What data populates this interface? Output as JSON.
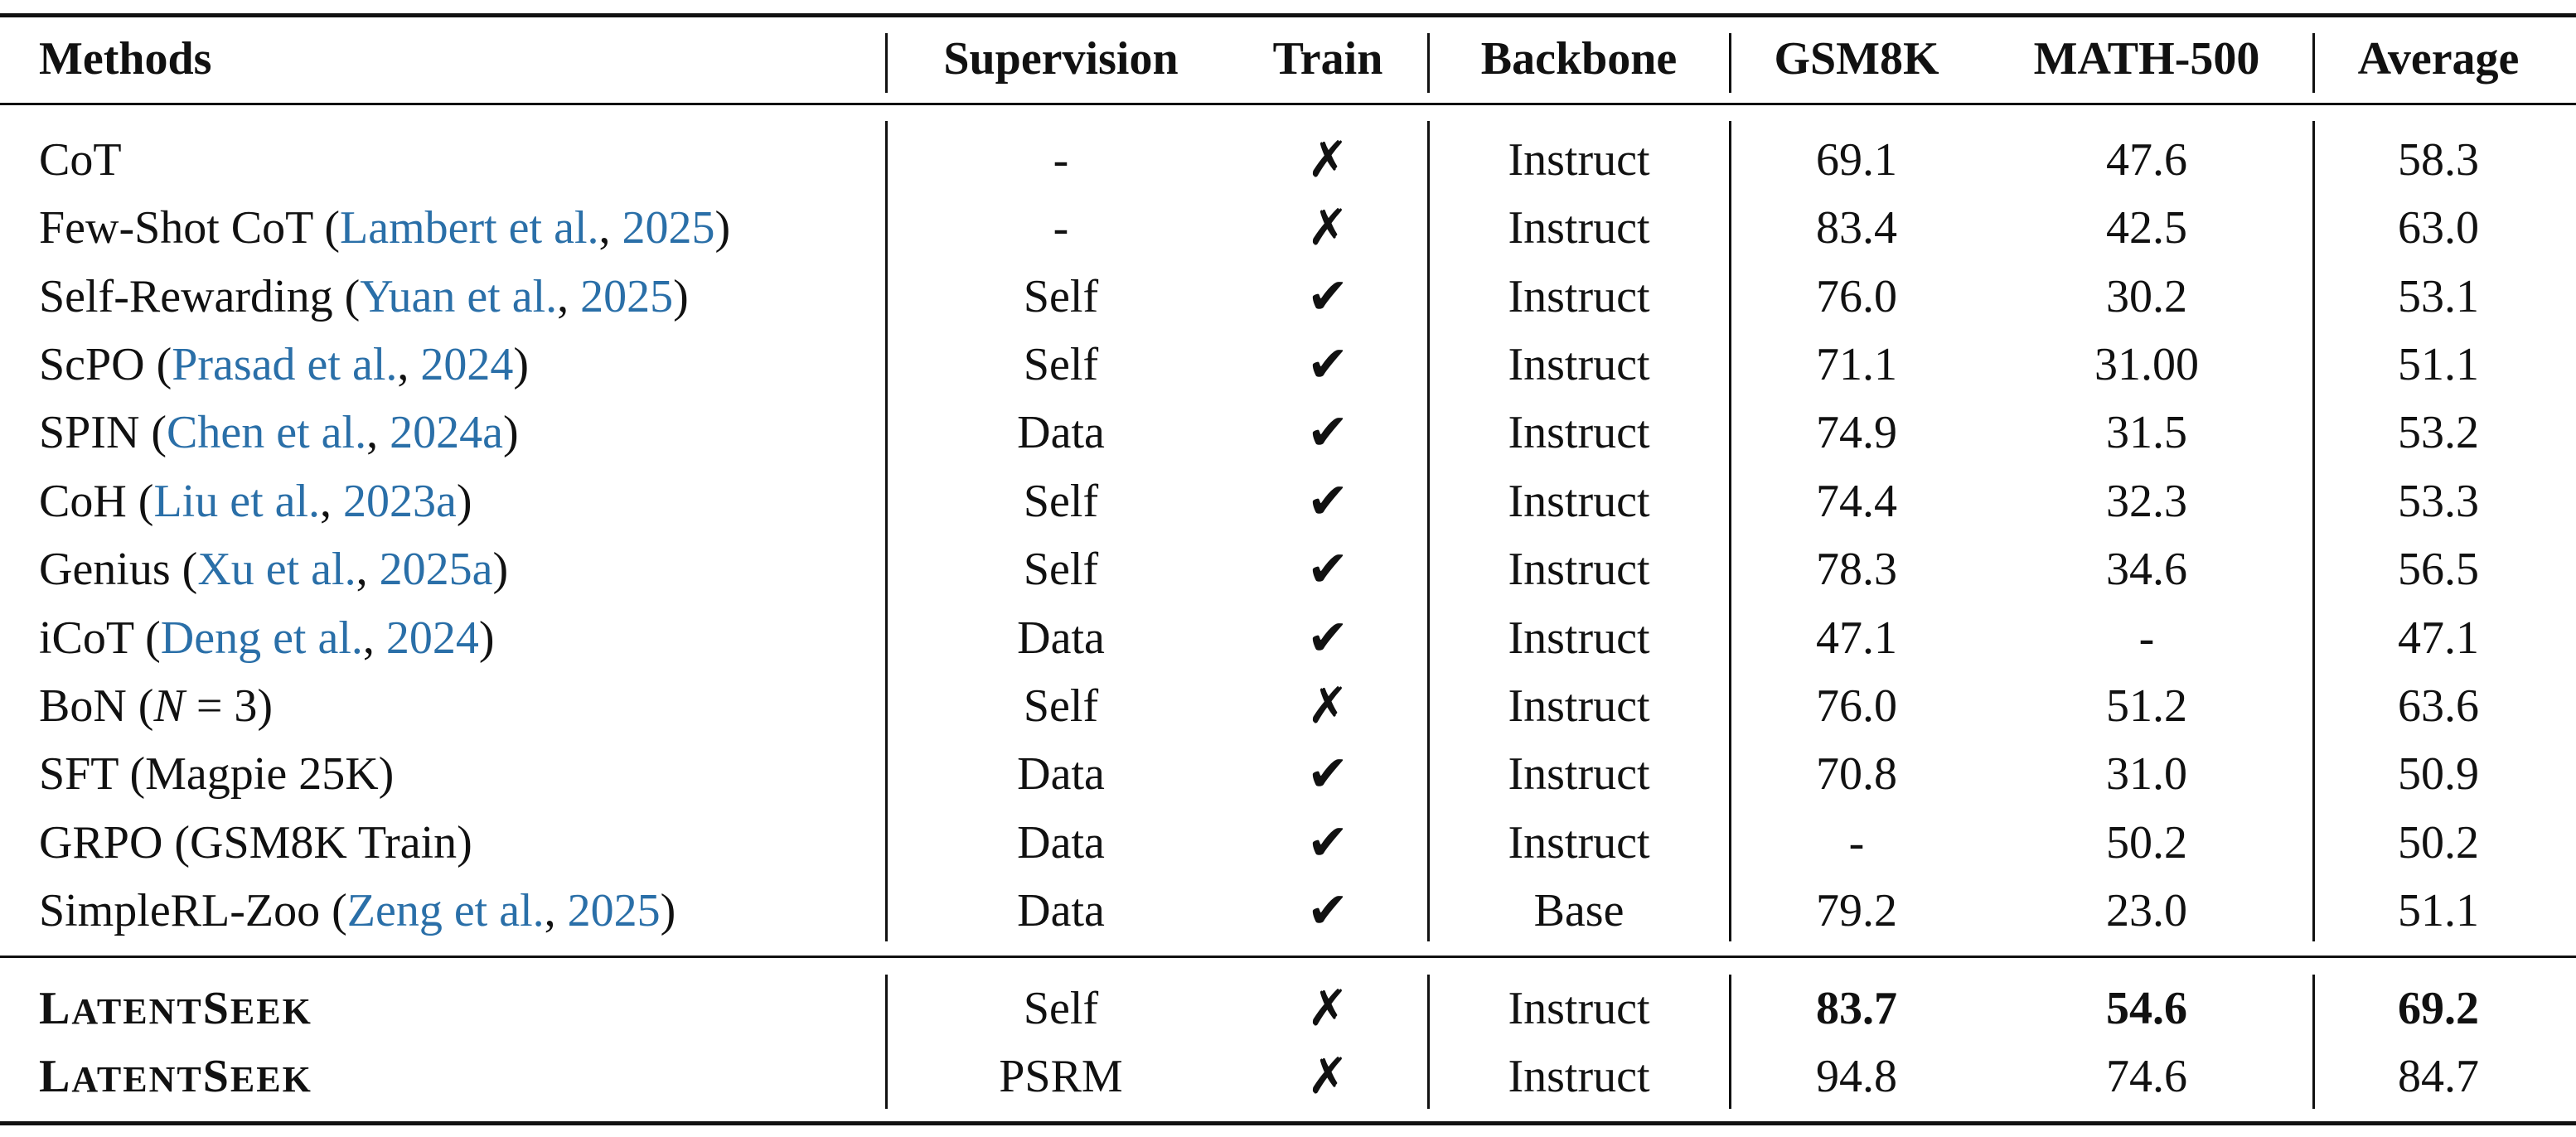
{
  "headers": {
    "methods": "Methods",
    "supervision": "Supervision",
    "train": "Train",
    "backbone": "Backbone",
    "gsm8k": "GSM8K",
    "math500": "MATH-500",
    "average": "Average"
  },
  "symbols": {
    "check": "✔",
    "cross": "✗"
  },
  "rows": [
    {
      "name": "CoT",
      "cite_pre": "",
      "cite": "",
      "cite_mid": "",
      "year": "",
      "cite_post": "",
      "supervision": "-",
      "train": "✗",
      "backbone": "Instruct",
      "gsm8k": "69.1",
      "math500": "47.6",
      "average": "58.3"
    },
    {
      "name": "Few-Shot CoT",
      "cite_pre": " (",
      "cite": "Lambert et al.",
      "cite_mid": ", ",
      "year": "2025",
      "cite_post": ")",
      "supervision": "-",
      "train": "✗",
      "backbone": "Instruct",
      "gsm8k": "83.4",
      "math500": "42.5",
      "average": "63.0"
    },
    {
      "name": "Self-Rewarding",
      "cite_pre": " (",
      "cite": "Yuan et al.",
      "cite_mid": ", ",
      "year": "2025",
      "cite_post": ")",
      "supervision": "Self",
      "train": "✔",
      "backbone": "Instruct",
      "gsm8k": "76.0",
      "math500": "30.2",
      "average": "53.1"
    },
    {
      "name": "ScPO",
      "cite_pre": " (",
      "cite": "Prasad et al.",
      "cite_mid": ", ",
      "year": "2024",
      "cite_post": ")",
      "supervision": "Self",
      "train": "✔",
      "backbone": "Instruct",
      "gsm8k": "71.1",
      "math500": "31.00",
      "average": "51.1"
    },
    {
      "name": "SPIN",
      "cite_pre": " (",
      "cite": "Chen et al.",
      "cite_mid": ", ",
      "year": "2024a",
      "cite_post": ")",
      "supervision": "Data",
      "train": "✔",
      "backbone": "Instruct",
      "gsm8k": "74.9",
      "math500": "31.5",
      "average": "53.2"
    },
    {
      "name": "CoH",
      "cite_pre": " (",
      "cite": "Liu et al.",
      "cite_mid": ", ",
      "year": "2023a",
      "cite_post": ")",
      "supervision": "Self",
      "train": "✔",
      "backbone": "Instruct",
      "gsm8k": "74.4",
      "math500": "32.3",
      "average": "53.3"
    },
    {
      "name": "Genius",
      "cite_pre": " (",
      "cite": "Xu et al.",
      "cite_mid": ", ",
      "year": "2025a",
      "cite_post": ")",
      "supervision": "Self",
      "train": "✔",
      "backbone": "Instruct",
      "gsm8k": "78.3",
      "math500": "34.6",
      "average": "56.5"
    },
    {
      "name": "iCoT",
      "cite_pre": " (",
      "cite": "Deng et al.",
      "cite_mid": ", ",
      "year": "2024",
      "cite_post": ")",
      "supervision": "Data",
      "train": "✔",
      "backbone": "Instruct",
      "gsm8k": "47.1",
      "math500": "-",
      "average": "47.1"
    },
    {
      "name": "BoN (N = 3)",
      "cite_pre": "",
      "cite": "",
      "cite_mid": "",
      "year": "",
      "cite_post": "",
      "supervision": "Self",
      "train": "✗",
      "backbone": "Instruct",
      "gsm8k": "76.0",
      "math500": "51.2",
      "average": "63.6"
    },
    {
      "name": "SFT (Magpie 25K)",
      "cite_pre": "",
      "cite": "",
      "cite_mid": "",
      "year": "",
      "cite_post": "",
      "supervision": "Data",
      "train": "✔",
      "backbone": "Instruct",
      "gsm8k": "70.8",
      "math500": "31.0",
      "average": "50.9"
    },
    {
      "name": "GRPO (GSM8K Train)",
      "cite_pre": "",
      "cite": "",
      "cite_mid": "",
      "year": "",
      "cite_post": "",
      "supervision": "Data",
      "train": "✔",
      "backbone": "Instruct",
      "gsm8k": "-",
      "math500": "50.2",
      "average": "50.2"
    },
    {
      "name": "SimpleRL-Zoo",
      "cite_pre": " (",
      "cite": "Zeng et al.",
      "cite_mid": ", ",
      "year": "2025",
      "cite_post": ")",
      "supervision": "Data",
      "train": "✔",
      "backbone": "Base",
      "gsm8k": "79.2",
      "math500": "23.0",
      "average": "51.1"
    }
  ],
  "ours": [
    {
      "name": "LatentSeek",
      "supervision": "Self",
      "train": "✗",
      "backbone": "Instruct",
      "gsm8k": "83.7",
      "math500": "54.6",
      "average": "69.2",
      "bold_scores": true
    },
    {
      "name": "LatentSeek",
      "supervision": "PSRM",
      "train": "✗",
      "backbone": "Instruct",
      "gsm8k": "94.8",
      "math500": "74.6",
      "average": "84.7",
      "bold_scores": false
    }
  ]
}
